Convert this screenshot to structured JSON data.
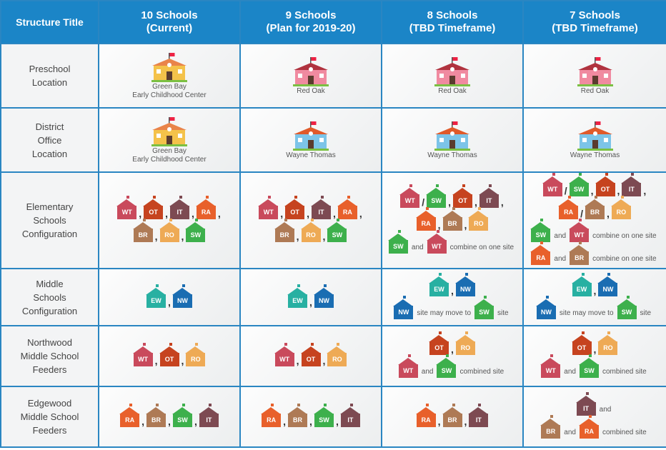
{
  "colors": {
    "WT": "#c94a5c",
    "OT": "#c6431f",
    "IT": "#7d4a52",
    "RA": "#e8602b",
    "BR": "#ae7a55",
    "RO": "#eeaa55",
    "SW": "#3db04c",
    "EW": "#28b0a2",
    "NW": "#1a6db2",
    "header": "#1b85c7"
  },
  "headers": [
    "Structure Title",
    "10 Schools\n(Current)",
    "9 Schools\n(Plan for 2019-20)",
    "8 Schools\n(TBD Timeframe)",
    "7 Schools\n(TBD Timeframe)"
  ],
  "rows": [
    {
      "label": "Preschool\nLocation",
      "cells": [
        {
          "building": "green-bay",
          "caption": "Green Bay\nEarly Childhood Center"
        },
        {
          "building": "red-oak",
          "caption": "Red Oak"
        },
        {
          "building": "red-oak",
          "caption": "Red Oak"
        },
        {
          "building": "red-oak",
          "caption": "Red Oak"
        }
      ]
    },
    {
      "label": "District\nOffice\nLocation",
      "cells": [
        {
          "building": "green-bay",
          "caption": "Green Bay\nEarly Childhood Center"
        },
        {
          "building": "wayne-thomas",
          "caption": "Wayne Thomas"
        },
        {
          "building": "wayne-thomas",
          "caption": "Wayne Thomas"
        },
        {
          "building": "wayne-thomas",
          "caption": "Wayne Thomas"
        }
      ]
    },
    {
      "label": "Elementary\nSchools\nConfiguration",
      "cells": [
        {
          "lines": [
            [
              "WT",
              ",",
              "OT",
              ",",
              "IT",
              ",",
              "RA",
              ","
            ],
            [
              "BR",
              ",",
              "RO",
              ",",
              "SW"
            ]
          ]
        },
        {
          "lines": [
            [
              "WT",
              ",",
              "OT",
              ",",
              "IT",
              ",",
              "RA",
              ","
            ],
            [
              "BR",
              ",",
              "RO",
              ",",
              "SW"
            ]
          ]
        },
        {
          "lines": [
            [
              "WT",
              "/",
              "SW",
              ",",
              "OT",
              ",",
              "IT",
              ","
            ],
            [
              "RA",
              ",",
              "BR",
              ",",
              "RO"
            ],
            [
              "SW",
              "t:and",
              "WT",
              "t:combine on one site"
            ]
          ]
        },
        {
          "lines": [
            [
              "WT",
              "/",
              "SW",
              ",",
              "OT",
              ",",
              "IT",
              ","
            ],
            [
              "RA",
              "/",
              "BR",
              ",",
              "RO"
            ],
            [
              "SW",
              "t:and",
              "WT",
              "t:combine on one site"
            ],
            [
              "RA",
              "t:and",
              "BR",
              "t:combine on one site"
            ]
          ]
        }
      ]
    },
    {
      "label": "Middle\nSchools\nConfiguration",
      "cells": [
        {
          "lines": [
            [
              "EW",
              ",",
              "NW"
            ]
          ]
        },
        {
          "lines": [
            [
              "EW",
              ",",
              "NW"
            ]
          ]
        },
        {
          "lines": [
            [
              "EW",
              ",",
              "NW"
            ],
            [
              "NW",
              "t:site may move to",
              "SW",
              "t:site"
            ]
          ]
        },
        {
          "lines": [
            [
              "EW",
              ",",
              "NW"
            ],
            [
              "NW",
              "t:site may move to",
              "SW",
              "t:site"
            ]
          ]
        }
      ]
    },
    {
      "label": "Northwood\nMiddle School\nFeeders",
      "cells": [
        {
          "lines": [
            [
              "WT",
              ",",
              "OT",
              ",",
              "RO"
            ]
          ]
        },
        {
          "lines": [
            [
              "WT",
              ",",
              "OT",
              ",",
              "RO"
            ]
          ]
        },
        {
          "lines": [
            [
              "OT",
              ",",
              "RO"
            ],
            [
              "WT",
              "t:and",
              "SW",
              "t:combined site"
            ]
          ]
        },
        {
          "lines": [
            [
              "OT",
              ",",
              "RO"
            ],
            [
              "WT",
              "t:and",
              "SW",
              "t:combined site"
            ]
          ]
        }
      ]
    },
    {
      "label": "Edgewood\nMiddle School\nFeeders",
      "cells": [
        {
          "lines": [
            [
              "RA",
              ",",
              "BR",
              ",",
              "SW",
              ",",
              "IT"
            ]
          ]
        },
        {
          "lines": [
            [
              "RA",
              ",",
              "BR",
              ",",
              "SW",
              ",",
              "IT"
            ]
          ]
        },
        {
          "lines": [
            [
              "RA",
              ",",
              "BR",
              ",",
              "IT"
            ]
          ]
        },
        {
          "lines": [
            [
              "IT",
              "t:and"
            ],
            [
              "BR",
              "t:and",
              "RA",
              "t:combined site"
            ]
          ]
        }
      ]
    }
  ]
}
